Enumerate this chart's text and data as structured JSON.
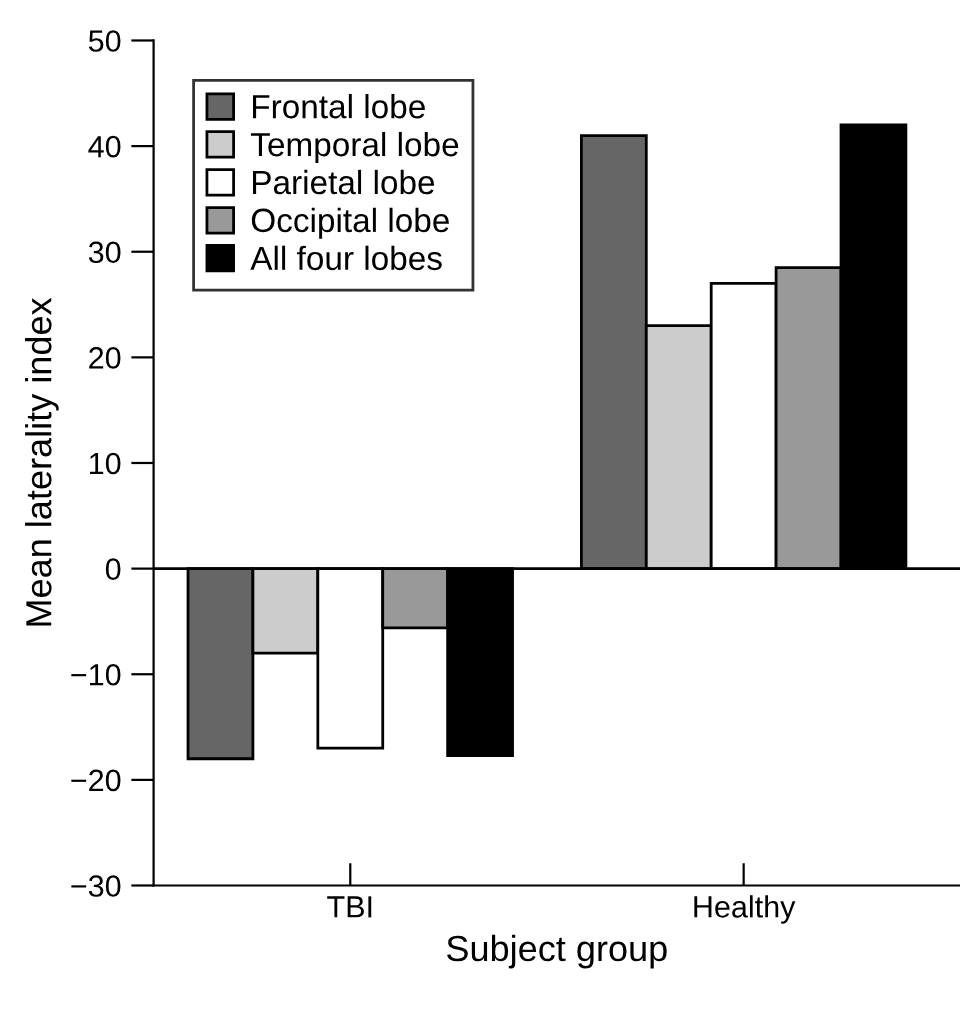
{
  "chart_data": {
    "type": "bar",
    "xlabel": "Subject group",
    "ylabel": "Mean laterality index",
    "categories": [
      "TBI",
      "Healthy"
    ],
    "series": [
      {
        "name": "Frontal lobe",
        "color": "#666666",
        "values": [
          -18,
          41
        ]
      },
      {
        "name": "Temporal lobe",
        "color": "#cccccc",
        "values": [
          -8,
          23
        ]
      },
      {
        "name": "Parietal lobe",
        "color": "#ffffff",
        "values": [
          -17,
          27
        ]
      },
      {
        "name": "Occipital lobe",
        "color": "#999999",
        "values": [
          -5.6,
          28.5
        ]
      },
      {
        "name": "All four lobes",
        "color": "#000000",
        "values": [
          -17.7,
          42
        ]
      }
    ],
    "ylim": [
      -30,
      50
    ],
    "yticks": [
      {
        "value": -30,
        "label": "−30"
      },
      {
        "value": -20,
        "label": "−20"
      },
      {
        "value": -10,
        "label": "−10"
      },
      0,
      10,
      20,
      30,
      40,
      50
    ],
    "ref_lines": [
      {
        "axis": "y",
        "value": 0,
        "label": null,
        "color": "#000000"
      }
    ],
    "grid": false,
    "legend": "top left"
  }
}
